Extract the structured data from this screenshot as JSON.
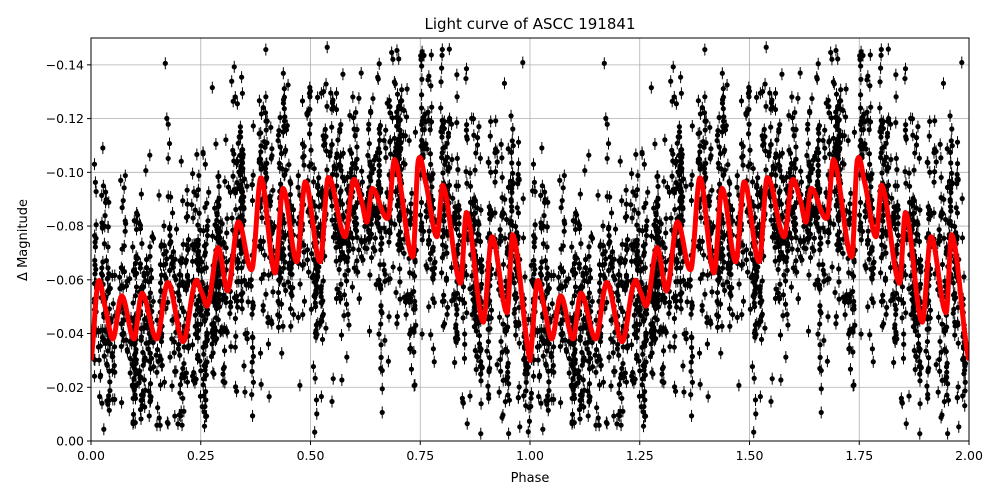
{
  "chart_data": {
    "type": "scatter",
    "title": "Light curve of ASCC 191841",
    "xlabel": "Phase",
    "ylabel": "Δ Magnitude",
    "xlim": [
      0,
      2
    ],
    "ylim": [
      0,
      -0.15
    ],
    "y_inverted": true,
    "grid": true,
    "x_ticks": [
      "0.00",
      "0.25",
      "0.50",
      "0.75",
      "1.00",
      "1.25",
      "1.50",
      "1.75",
      "2.00"
    ],
    "y_ticks": [
      "0.00",
      "−0.02",
      "−0.04",
      "−0.06",
      "−0.08",
      "−0.10",
      "−0.12",
      "−0.14"
    ],
    "x_tick_values": [
      0,
      0.25,
      0.5,
      0.75,
      1,
      1.25,
      1.5,
      1.75,
      2
    ],
    "y_tick_values": [
      0,
      -0.02,
      -0.04,
      -0.06,
      -0.08,
      -0.1,
      -0.12,
      -0.14
    ],
    "series": [
      {
        "kind": "observations",
        "style": "black points with error bars",
        "color": "#000000",
        "note_range": "points scattered roughly ±0.05 mag around the model, over phase 0–2"
      },
      {
        "kind": "model",
        "style": "thick line",
        "color": "#ff0000",
        "repeats_every_phase": 1,
        "phase": [
          0.0,
          0.016,
          0.032,
          0.05,
          0.07,
          0.098,
          0.116,
          0.15,
          0.175,
          0.21,
          0.237,
          0.253,
          0.267,
          0.289,
          0.312,
          0.335,
          0.367,
          0.387,
          0.419,
          0.437,
          0.469,
          0.488,
          0.522,
          0.54,
          0.579,
          0.597,
          0.617,
          0.629,
          0.64,
          0.677,
          0.692,
          0.733,
          0.745,
          0.761,
          0.788,
          0.802,
          0.841,
          0.856,
          0.893,
          0.913,
          0.948,
          0.961,
          1.0
        ],
        "magnitude": [
          -0.03,
          -0.059,
          -0.05,
          -0.038,
          -0.054,
          -0.038,
          -0.055,
          -0.038,
          -0.059,
          -0.037,
          -0.059,
          -0.055,
          -0.051,
          -0.072,
          -0.056,
          -0.0815,
          -0.064,
          -0.098,
          -0.0625,
          -0.094,
          -0.0667,
          -0.0965,
          -0.0667,
          -0.098,
          -0.076,
          -0.097,
          -0.089,
          -0.0815,
          -0.094,
          -0.083,
          -0.1046,
          -0.0685,
          -0.104,
          -0.097,
          -0.076,
          -0.095,
          -0.0588,
          -0.085,
          -0.0443,
          -0.076,
          -0.0477,
          -0.0767,
          -0.03
        ]
      }
    ]
  }
}
